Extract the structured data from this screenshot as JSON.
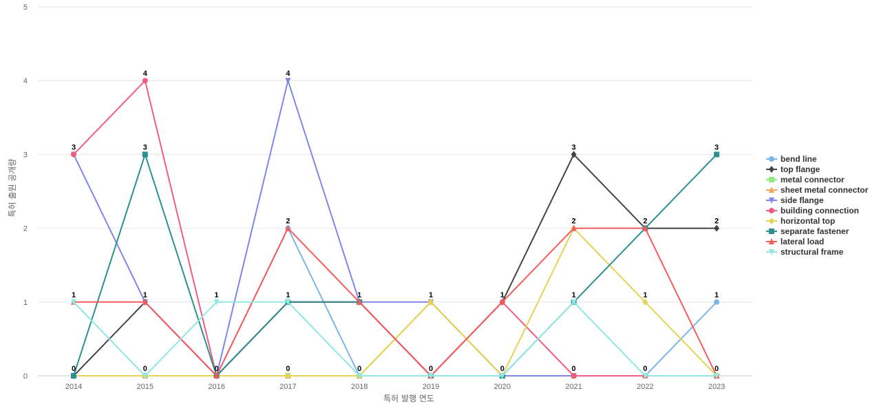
{
  "chart_data": {
    "type": "line",
    "xlabel": "특허 발행 연도",
    "ylabel": "특허 출원 공개량",
    "ylim": [
      0,
      5
    ],
    "yticks": [
      0,
      1,
      2,
      3,
      4,
      5
    ],
    "grid": true,
    "legend_position": "right",
    "categories": [
      "2014",
      "2015",
      "2016",
      "2017",
      "2018",
      "2019",
      "2020",
      "2021",
      "2022",
      "2023"
    ],
    "series": [
      {
        "name": "bend line",
        "color": "#7cb5ec",
        "marker": "circle",
        "values": [
          0,
          0,
          0,
          2,
          0,
          0,
          0,
          0,
          0,
          1
        ]
      },
      {
        "name": "top flange",
        "color": "#434348",
        "marker": "diamond",
        "values": [
          0,
          1,
          0,
          1,
          1,
          0,
          1,
          3,
          2,
          2
        ]
      },
      {
        "name": "metal connector",
        "color": "#90ed7d",
        "marker": "square",
        "values": [
          0,
          0,
          0,
          0,
          0,
          0,
          0,
          0,
          0,
          0
        ]
      },
      {
        "name": "sheet metal connector",
        "color": "#f7a35c",
        "marker": "triangle",
        "values": [
          0,
          0,
          0,
          0,
          0,
          1,
          0,
          0,
          0,
          0
        ]
      },
      {
        "name": "side flange",
        "color": "#8085e9",
        "marker": "triangle-down",
        "values": [
          3,
          1,
          0,
          4,
          1,
          1,
          0,
          0,
          0,
          0
        ]
      },
      {
        "name": "building connection",
        "color": "#f15c80",
        "marker": "circle",
        "values": [
          3,
          4,
          0,
          1,
          1,
          0,
          1,
          0,
          0,
          0
        ]
      },
      {
        "name": "horizontal top",
        "color": "#e4d354",
        "marker": "diamond",
        "values": [
          0,
          0,
          0,
          0,
          0,
          1,
          0,
          2,
          1,
          0
        ]
      },
      {
        "name": "separate fastener",
        "color": "#2b908f",
        "marker": "square",
        "values": [
          0,
          3,
          0,
          1,
          1,
          0,
          0,
          1,
          2,
          3
        ]
      },
      {
        "name": "lateral load",
        "color": "#f45b5b",
        "marker": "triangle",
        "values": [
          1,
          1,
          0,
          2,
          1,
          0,
          1,
          2,
          2,
          0
        ]
      },
      {
        "name": "structural frame",
        "color": "#91e8e1",
        "marker": "triangle-down",
        "values": [
          1,
          0,
          1,
          1,
          0,
          0,
          0,
          1,
          0,
          0
        ]
      }
    ],
    "data_labels": [
      {
        "x": "2014",
        "y": 3,
        "text": "3"
      },
      {
        "x": "2014",
        "y": 1,
        "text": "1"
      },
      {
        "x": "2014",
        "y": 0,
        "text": "0"
      },
      {
        "x": "2015",
        "y": 4,
        "text": "4"
      },
      {
        "x": "2015",
        "y": 3,
        "text": "3"
      },
      {
        "x": "2015",
        "y": 1,
        "text": "1"
      },
      {
        "x": "2015",
        "y": 0,
        "text": "0"
      },
      {
        "x": "2016",
        "y": 1,
        "text": "1"
      },
      {
        "x": "2016",
        "y": 0,
        "text": "0"
      },
      {
        "x": "2017",
        "y": 4,
        "text": "4"
      },
      {
        "x": "2017",
        "y": 2,
        "text": "2"
      },
      {
        "x": "2017",
        "y": 1,
        "text": "1"
      },
      {
        "x": "2017",
        "y": 0,
        "text": "0"
      },
      {
        "x": "2018",
        "y": 1,
        "text": "1"
      },
      {
        "x": "2018",
        "y": 0,
        "text": "0"
      },
      {
        "x": "2019",
        "y": 1,
        "text": "1"
      },
      {
        "x": "2019",
        "y": 0,
        "text": "0"
      },
      {
        "x": "2020",
        "y": 1,
        "text": "1"
      },
      {
        "x": "2020",
        "y": 0,
        "text": "0"
      },
      {
        "x": "2021",
        "y": 3,
        "text": "3"
      },
      {
        "x": "2021",
        "y": 2,
        "text": "2"
      },
      {
        "x": "2021",
        "y": 1,
        "text": "1"
      },
      {
        "x": "2021",
        "y": 0,
        "text": "0"
      },
      {
        "x": "2022",
        "y": 2,
        "text": "2"
      },
      {
        "x": "2022",
        "y": 1,
        "text": "1"
      },
      {
        "x": "2022",
        "y": 0,
        "text": "0"
      },
      {
        "x": "2023",
        "y": 3,
        "text": "3"
      },
      {
        "x": "2023",
        "y": 2,
        "text": "2"
      },
      {
        "x": "2023",
        "y": 1,
        "text": "1"
      },
      {
        "x": "2023",
        "y": 0,
        "text": "0"
      }
    ]
  }
}
